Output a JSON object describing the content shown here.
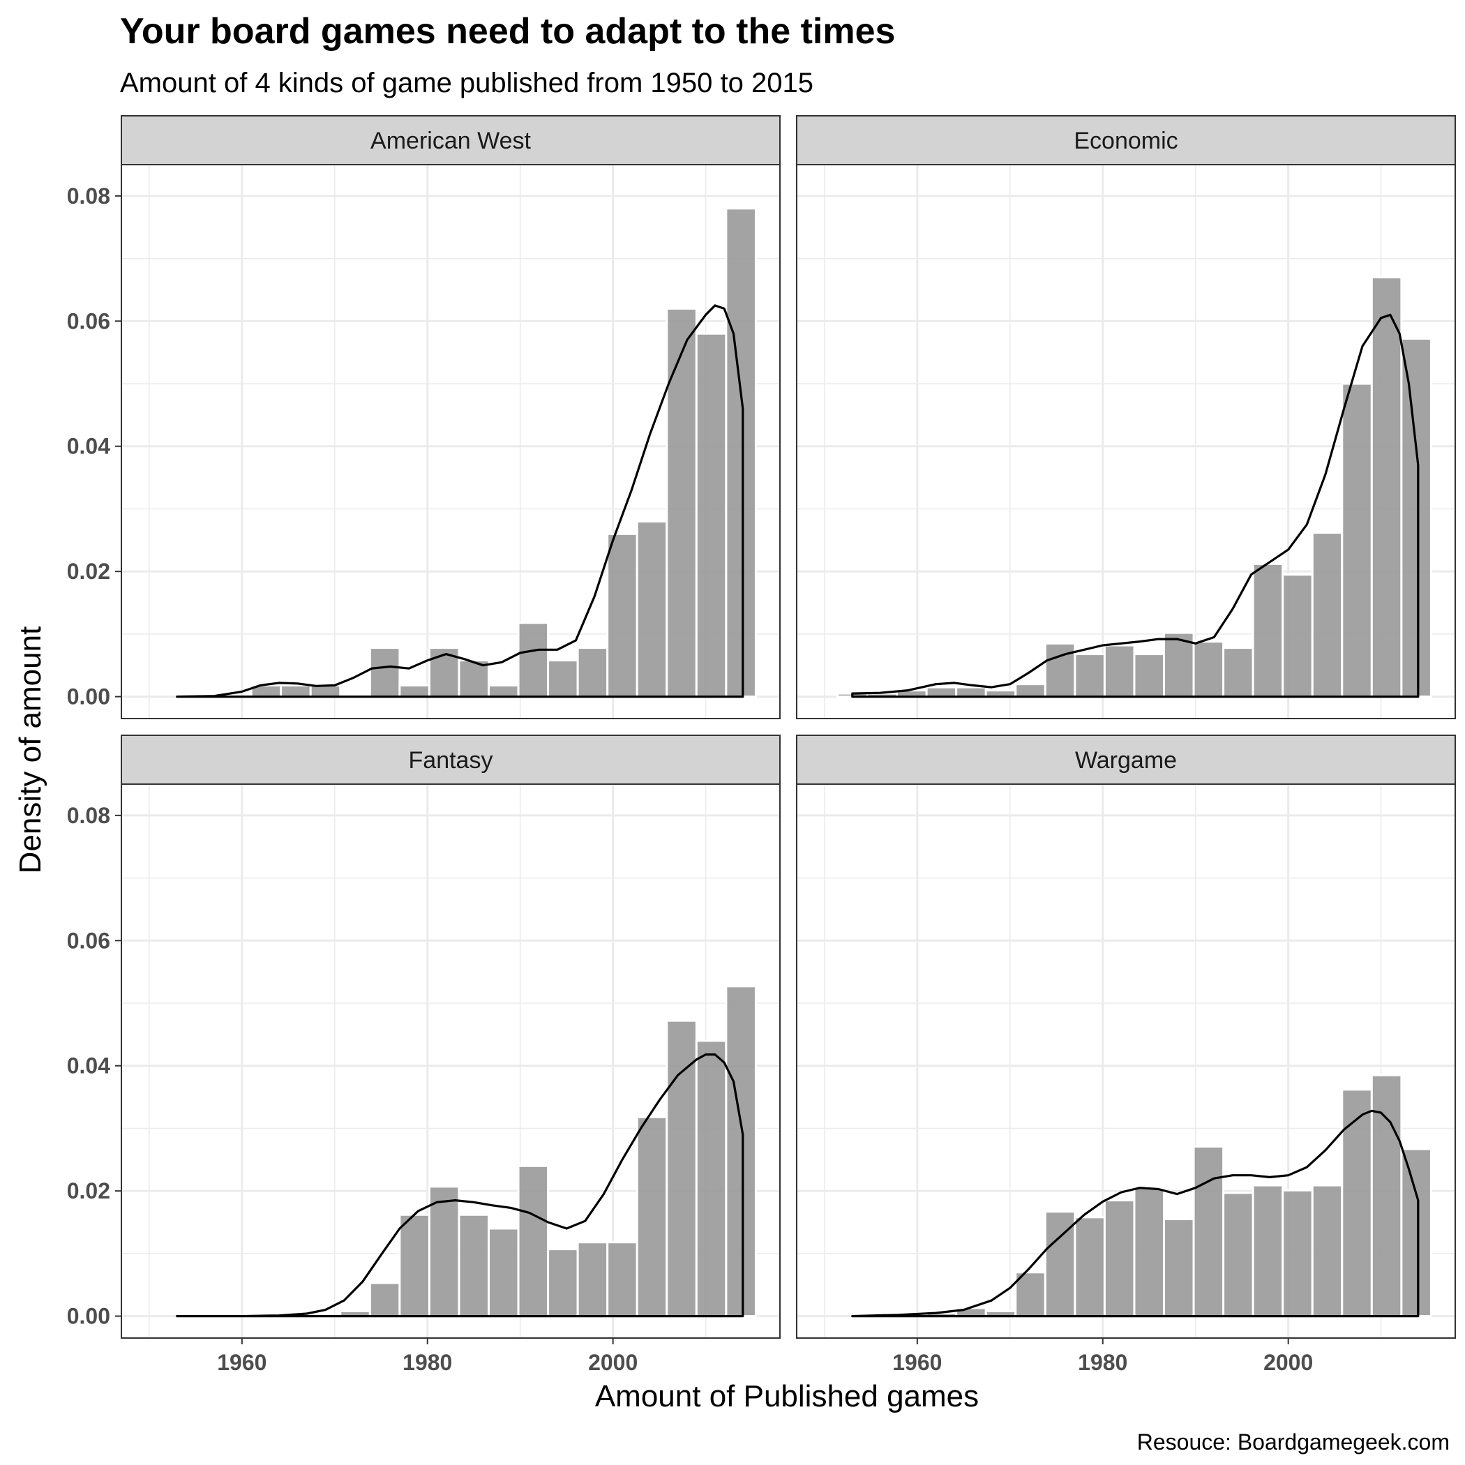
{
  "title": "Your board games need to adapt to the times",
  "subtitle": "Amount of 4 kinds of game published from 1950 to 2015",
  "caption": "Resouce: Boardgamegeek.com",
  "colors": {
    "bar_fill": "#999999",
    "density_line": "#000000",
    "strip_fill": "#d3d3d3",
    "grid": "#ebebeb",
    "panel_border": "#333333"
  },
  "chart_data": {
    "type": "bar",
    "layout": "facet_wrap 2x2",
    "xlabel": "Amount of Published games",
    "ylabel": "Density of amount",
    "xlim": [
      1947,
      2018
    ],
    "ylim": [
      -0.0035,
      0.085
    ],
    "x_ticks": [
      1960,
      1980,
      2000
    ],
    "x_tick_labels": [
      "1960",
      "1980",
      "2000"
    ],
    "y_ticks": [
      0,
      0.02,
      0.04,
      0.06,
      0.08
    ],
    "y_tick_labels": [
      "0.00",
      "0.02",
      "0.04",
      "0.06",
      "0.08"
    ],
    "grid": true,
    "bin_centers": [
      1953,
      1956.2,
      1959.4,
      1962.6,
      1965.8,
      1969,
      1972.2,
      1975.4,
      1978.6,
      1981.8,
      1985,
      1988.2,
      1991.4,
      1994.6,
      1997.8,
      2001,
      2004.2,
      2007.4,
      2010.6,
      2013.8
    ],
    "bin_width": 3.2,
    "panels": [
      {
        "name": "American West",
        "bars": [
          0,
          0,
          0,
          0.0018,
          0.0018,
          0.0018,
          0,
          0.0078,
          0.0018,
          0.0078,
          0.0058,
          0.0018,
          0.0118,
          0.0058,
          0.0078,
          0.026,
          0.028,
          0.062,
          0.058,
          0.078
        ],
        "density": {
          "x": [
            1953,
            1957,
            1960,
            1962,
            1964,
            1966,
            1968,
            1970,
            1972,
            1974,
            1976,
            1978,
            1980,
            1982,
            1984,
            1986,
            1988,
            1990,
            1992,
            1994,
            1996,
            1998,
            2000,
            2002,
            2004,
            2006,
            2008,
            2010,
            2011,
            2012,
            2013,
            2014
          ],
          "y": [
            0,
            0.0001,
            0.0008,
            0.0018,
            0.0022,
            0.0021,
            0.0017,
            0.0018,
            0.003,
            0.0045,
            0.0048,
            0.0045,
            0.0058,
            0.0068,
            0.006,
            0.005,
            0.0055,
            0.007,
            0.0075,
            0.0075,
            0.009,
            0.016,
            0.025,
            0.033,
            0.042,
            0.05,
            0.057,
            0.061,
            0.0625,
            0.062,
            0.058,
            0.046
          ]
        }
      },
      {
        "name": "Economic",
        "bars": [
          0.0005,
          0.0005,
          0.001,
          0.0015,
          0.0015,
          0.001,
          0.002,
          0.0085,
          0.0068,
          0.0082,
          0.0068,
          0.0102,
          0.0088,
          0.0078,
          0.0212,
          0.0195,
          0.0262,
          0.05,
          0.067,
          0.0572
        ],
        "density": {
          "x": [
            1953,
            1956,
            1959,
            1962,
            1964,
            1966,
            1968,
            1970,
            1972,
            1974,
            1976,
            1978,
            1980,
            1982,
            1984,
            1986,
            1988,
            1990,
            1992,
            1994,
            1996,
            1998,
            2000,
            2002,
            2004,
            2006,
            2008,
            2010,
            2011,
            2012,
            2013,
            2014
          ],
          "y": [
            0.0005,
            0.0006,
            0.001,
            0.002,
            0.0022,
            0.0018,
            0.0015,
            0.002,
            0.0038,
            0.0058,
            0.0068,
            0.0075,
            0.0082,
            0.0085,
            0.0088,
            0.0092,
            0.0092,
            0.0085,
            0.0095,
            0.014,
            0.0195,
            0.0215,
            0.0235,
            0.0275,
            0.0355,
            0.046,
            0.056,
            0.0605,
            0.061,
            0.058,
            0.05,
            0.037
          ]
        }
      },
      {
        "name": "Fantasy",
        "bars": [
          0,
          0,
          0,
          0,
          0,
          0,
          0.0008,
          0.0053,
          0.0162,
          0.0207,
          0.0162,
          0.014,
          0.024,
          0.0107,
          0.0118,
          0.0118,
          0.0318,
          0.0472,
          0.044,
          0.0527
        ],
        "density": {
          "x": [
            1953,
            1960,
            1964,
            1967,
            1969,
            1971,
            1973,
            1975,
            1977,
            1979,
            1981,
            1983,
            1985,
            1987,
            1989,
            1991,
            1993,
            1995,
            1997,
            1999,
            2001,
            2003,
            2005,
            2007,
            2009,
            2010,
            2011,
            2012,
            2013,
            2014
          ],
          "y": [
            0,
            0,
            0.0001,
            0.0004,
            0.001,
            0.0025,
            0.0055,
            0.0098,
            0.014,
            0.0168,
            0.0182,
            0.0185,
            0.0182,
            0.0177,
            0.0173,
            0.0165,
            0.015,
            0.014,
            0.0152,
            0.0195,
            0.025,
            0.03,
            0.0345,
            0.0385,
            0.041,
            0.0418,
            0.0418,
            0.0405,
            0.0375,
            0.029
          ]
        }
      },
      {
        "name": "Wargame",
        "bars": [
          0,
          0,
          0,
          0.0005,
          0.0013,
          0.0008,
          0.007,
          0.0167,
          0.0158,
          0.0185,
          0.0205,
          0.0155,
          0.0271,
          0.0197,
          0.0209,
          0.0201,
          0.0209,
          0.0362,
          0.0385,
          0.0267
        ],
        "density": {
          "x": [
            1953,
            1958,
            1962,
            1965,
            1968,
            1970,
            1972,
            1974,
            1976,
            1978,
            1980,
            1982,
            1984,
            1986,
            1988,
            1990,
            1992,
            1994,
            1996,
            1998,
            2000,
            2002,
            2004,
            2006,
            2008,
            2009,
            2010,
            2011,
            2012,
            2013,
            2014
          ],
          "y": [
            0,
            0.0002,
            0.0005,
            0.001,
            0.0025,
            0.0045,
            0.0075,
            0.0108,
            0.0135,
            0.0162,
            0.0183,
            0.0198,
            0.0205,
            0.0203,
            0.0195,
            0.0205,
            0.022,
            0.0225,
            0.0225,
            0.0222,
            0.0225,
            0.0238,
            0.0265,
            0.0298,
            0.0322,
            0.0328,
            0.0325,
            0.031,
            0.028,
            0.0235,
            0.0185
          ]
        }
      }
    ]
  }
}
